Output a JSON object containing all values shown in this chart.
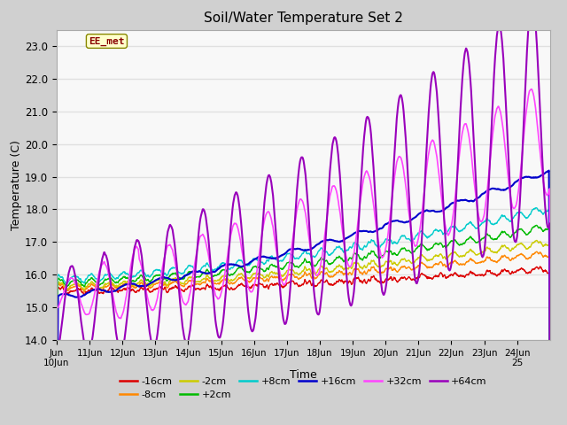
{
  "title": "Soil/Water Temperature Set 2",
  "xlabel": "Time",
  "ylabel": "Temperature (C)",
  "ylim": [
    14.0,
    23.5
  ],
  "yticks": [
    14.0,
    15.0,
    16.0,
    17.0,
    18.0,
    19.0,
    20.0,
    21.0,
    22.0,
    23.0
  ],
  "annotation_text": "EE_met",
  "annotation_box_color": "#ffffcc",
  "annotation_text_color": "#880000",
  "annotation_border_color": "#888800",
  "fig_bg_color": "#d0d0d0",
  "plot_bg_color": "#f8f8f8",
  "grid_color": "#e0e0e0",
  "series": {
    "-16cm": {
      "color": "#dd0000",
      "lw": 1.0
    },
    "-8cm": {
      "color": "#ff8800",
      "lw": 1.0
    },
    "-2cm": {
      "color": "#cccc00",
      "lw": 1.0
    },
    "+2cm": {
      "color": "#00bb00",
      "lw": 1.0
    },
    "+8cm": {
      "color": "#00cccc",
      "lw": 1.0
    },
    "+16cm": {
      "color": "#0000cc",
      "lw": 1.5
    },
    "+32cm": {
      "color": "#ff44ff",
      "lw": 1.2
    },
    "+64cm": {
      "color": "#9900bb",
      "lw": 1.5
    }
  }
}
